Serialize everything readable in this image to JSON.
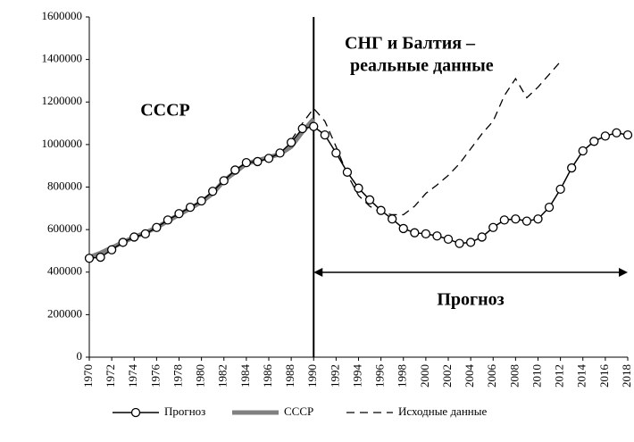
{
  "chart_data": {
    "type": "line",
    "x": [
      1970,
      1971,
      1972,
      1973,
      1974,
      1975,
      1976,
      1977,
      1978,
      1979,
      1980,
      1981,
      1982,
      1983,
      1984,
      1985,
      1986,
      1987,
      1988,
      1989,
      1990,
      1991,
      1992,
      1993,
      1994,
      1995,
      1996,
      1997,
      1998,
      1999,
      2000,
      2001,
      2002,
      2003,
      2004,
      2005,
      2006,
      2007,
      2008,
      2009,
      2010,
      2011,
      2012,
      2013,
      2014,
      2015,
      2016,
      2017,
      2018
    ],
    "series": [
      {
        "name": "Прогноз",
        "color": "#000000",
        "style": "circles",
        "values": [
          465000,
          470000,
          505000,
          540000,
          565000,
          580000,
          610000,
          645000,
          675000,
          705000,
          735000,
          780000,
          830000,
          880000,
          915000,
          920000,
          935000,
          960000,
          1010000,
          1075000,
          1085000,
          1045000,
          960000,
          870000,
          795000,
          740000,
          690000,
          650000,
          605000,
          585000,
          580000,
          570000,
          555000,
          535000,
          540000,
          565000,
          610000,
          645000,
          650000,
          640000,
          650000,
          705000,
          790000,
          890000,
          970000,
          1015000,
          1040000,
          1055000,
          1045000
        ]
      },
      {
        "name": "СССР",
        "color": "#808080",
        "style": "thick",
        "values": [
          470000,
          490000,
          515000,
          540000,
          565000,
          585000,
          610000,
          640000,
          670000,
          700000,
          730000,
          770000,
          830000,
          870000,
          910000,
          925000,
          940000,
          955000,
          990000,
          1060000,
          1120000,
          null,
          null,
          null,
          null,
          null,
          null,
          null,
          null,
          null,
          null,
          null,
          null,
          null,
          null,
          null,
          null,
          null,
          null,
          null,
          null,
          null,
          null,
          null,
          null,
          null,
          null,
          null,
          null
        ]
      },
      {
        "name": "Исходные данные",
        "color": "#000000",
        "style": "dashed",
        "values": [
          null,
          null,
          null,
          null,
          null,
          null,
          null,
          null,
          null,
          null,
          null,
          null,
          null,
          null,
          null,
          null,
          null,
          null,
          1020000,
          1100000,
          1170000,
          1110000,
          990000,
          860000,
          760000,
          710000,
          680000,
          670000,
          670000,
          710000,
          770000,
          810000,
          855000,
          910000,
          980000,
          1050000,
          1110000,
          1230000,
          1310000,
          1220000,
          1270000,
          1330000,
          1390000,
          null,
          null,
          null,
          null,
          null,
          null
        ]
      }
    ],
    "xlim": [
      1970,
      2018
    ],
    "xticks": [
      1970,
      1972,
      1974,
      1976,
      1978,
      1980,
      1982,
      1984,
      1986,
      1988,
      1990,
      1992,
      1994,
      1996,
      1998,
      2000,
      2002,
      2004,
      2006,
      2008,
      2010,
      2012,
      2014,
      2016,
      2018
    ],
    "ylim": [
      0,
      1600000
    ],
    "yticks": [
      0,
      200000,
      400000,
      600000,
      800000,
      1000000,
      1200000,
      1400000,
      1600000
    ],
    "annotations": [
      "СССР",
      "СНГ и Балтия –",
      "реальные данные",
      "Прогноз"
    ]
  }
}
